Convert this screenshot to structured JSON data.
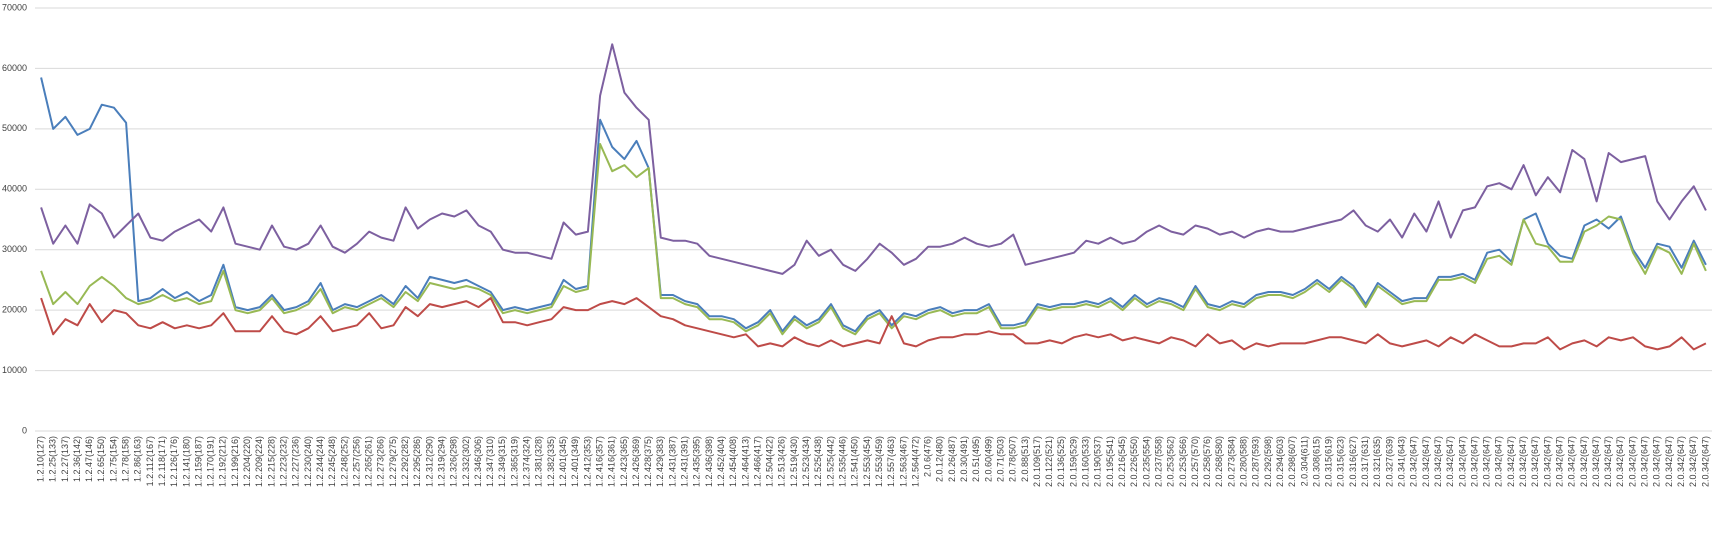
{
  "chart_data": {
    "type": "line",
    "categories": [
      "1.2.10(127)",
      "1.2.25(133)",
      "1.2.27(137)",
      "1.2.36(142)",
      "1.2.47(146)",
      "1.2.65(150)",
      "1.2.75(154)",
      "1.2.78(158)",
      "1.2.86(163)",
      "1.2.112(167)",
      "1.2.118(171)",
      "1.2.126(176)",
      "1.2.141(180)",
      "1.2.159(187)",
      "1.2.170(191)",
      "1.2.192(212)",
      "1.2.199(216)",
      "1.2.204(220)",
      "1.2.209(224)",
      "1.2.215(228)",
      "1.2.223(232)",
      "1.2.227(236)",
      "1.2.230(240)",
      "1.2.244(244)",
      "1.2.245(248)",
      "1.2.248(252)",
      "1.2.257(256)",
      "1.2.265(261)",
      "1.2.273(266)",
      "1.2.279(275)",
      "1.2.292(282)",
      "1.2.295(286)",
      "1.2.312(290)",
      "1.2.319(294)",
      "1.2.326(298)",
      "1.2.332(302)",
      "1.2.346(306)",
      "1.2.347(310)",
      "1.2.349(315)",
      "1.2.365(319)",
      "1.2.374(324)",
      "1.2.381(328)",
      "1.2.382(335)",
      "1.2.401(345)",
      "1.2.401(349)",
      "1.2.412(353)",
      "1.2.416(357)",
      "1.2.416(361)",
      "1.2.423(365)",
      "1.2.426(369)",
      "1.2.428(375)",
      "1.2.429(383)",
      "1.2.431(387)",
      "1.2.431(391)",
      "1.2.435(395)",
      "1.2.436(398)",
      "1.2.452(404)",
      "1.2.454(408)",
      "1.2.464(413)",
      "1.2.466(417)",
      "1.2.504(422)",
      "1.2.513(426)",
      "1.2.519(430)",
      "1.2.523(434)",
      "1.2.525(438)",
      "1.2.525(442)",
      "1.2.535(446)",
      "1.2.541(450)",
      "1.2.553(454)",
      "1.2.553(459)",
      "1.2.557(463)",
      "1.2.563(467)",
      "1.2.564(472)",
      "2.0.6(476)",
      "2.0.12(480)",
      "2.0.26(487)",
      "2.0.30(491)",
      "2.0.51(495)",
      "2.0.60(499)",
      "2.0.71(503)",
      "2.0.78(507)",
      "2.0.88(513)",
      "2.0.109(517)",
      "2.0.122(521)",
      "2.0.136(525)",
      "2.0.159(529)",
      "2.0.160(533)",
      "2.0.190(537)",
      "2.0.195(541)",
      "2.0.216(545)",
      "2.0.226(550)",
      "2.0.235(554)",
      "2.0.237(558)",
      "2.0.253(562)",
      "2.0.253(566)",
      "2.0.257(570)",
      "2.0.258(576)",
      "2.0.268(580)",
      "2.0.273(584)",
      "2.0.280(588)",
      "2.0.287(593)",
      "2.0.292(598)",
      "2.0.294(603)",
      "2.0.298(607)",
      "2.0.304(611)",
      "2.0.308(615)",
      "2.0.315(619)",
      "2.0.315(623)",
      "2.0.316(627)",
      "2.0.317(631)",
      "2.0.321(635)",
      "2.0.327(639)",
      "2.0.341(643)",
      "2.0.342(647)",
      "2.0.342(647)",
      "2.0.342(647)",
      "2.0.342(647)",
      "2.0.342(647)",
      "2.0.342(647)",
      "2.0.342(647)",
      "2.0.342(647)",
      "2.0.342(647)",
      "2.0.342(647)",
      "2.0.342(647)",
      "2.0.342(647)",
      "2.0.342(647)",
      "2.0.342(647)",
      "2.0.342(647)",
      "2.0.342(647)",
      "2.0.342(647)",
      "2.0.342(647)",
      "2.0.342(647)",
      "2.0.342(647)",
      "2.0.342(647)",
      "2.0.342(647)",
      "2.0.342(647)",
      "2.0.342(647)",
      "2.0.342(647)"
    ],
    "series": [
      {
        "color": "#4a7ebb",
        "values": [
          58500,
          50000,
          52000,
          49000,
          50000,
          54000,
          53500,
          51000,
          21500,
          22000,
          23500,
          22000,
          23000,
          21500,
          22500,
          27500,
          20500,
          20000,
          20500,
          22500,
          20000,
          20500,
          21500,
          24500,
          20000,
          21000,
          20500,
          21500,
          22500,
          21000,
          24000,
          22000,
          25500,
          25000,
          24500,
          25000,
          24000,
          23000,
          20000,
          20500,
          20000,
          20500,
          21000,
          25000,
          23500,
          24000,
          51500,
          47000,
          45000,
          48000,
          43500,
          22500,
          22500,
          21500,
          21000,
          19000,
          19000,
          18500,
          17000,
          18000,
          20000,
          16500,
          19000,
          17500,
          18500,
          21000,
          17500,
          16500,
          19000,
          20000,
          17500,
          19500,
          19000,
          20000,
          20500,
          19500,
          20000,
          20000,
          21000,
          17500,
          17500,
          18000,
          21000,
          20500,
          21000,
          21000,
          21500,
          21000,
          22000,
          20500,
          22500,
          21000,
          22000,
          21500,
          20500,
          24000,
          21000,
          20500,
          21500,
          21000,
          22500,
          23000,
          23000,
          22500,
          23500,
          25000,
          23500,
          25500,
          24000,
          21000,
          24500,
          23000,
          21500,
          22000,
          22000,
          25500,
          25500,
          26000,
          25000,
          29500,
          30000,
          28000,
          35000,
          36000,
          31000,
          29000,
          28500,
          34000,
          35000,
          33500,
          35500,
          30000,
          27000,
          31000,
          30500,
          27000,
          31500,
          27500
        ]
      },
      {
        "color": "#98b954",
        "values": [
          26500,
          21000,
          23000,
          21000,
          24000,
          25500,
          24000,
          22000,
          21000,
          21500,
          22500,
          21500,
          22000,
          21000,
          21500,
          26500,
          20000,
          19500,
          20000,
          22000,
          19500,
          20000,
          21000,
          23500,
          19500,
          20500,
          20000,
          21000,
          22000,
          20500,
          23000,
          21500,
          24500,
          24000,
          23500,
          24000,
          23500,
          22500,
          19500,
          20000,
          19500,
          20000,
          20500,
          24000,
          23000,
          23500,
          47500,
          43000,
          44000,
          42000,
          43500,
          22000,
          22000,
          21000,
          20500,
          18500,
          18500,
          18000,
          16500,
          17500,
          19500,
          16000,
          18500,
          17000,
          18000,
          20500,
          17000,
          16000,
          18500,
          19500,
          17000,
          19000,
          18500,
          19500,
          20000,
          19000,
          19500,
          19500,
          20500,
          17000,
          17000,
          17500,
          20500,
          20000,
          20500,
          20500,
          21000,
          20500,
          21500,
          20000,
          22000,
          20500,
          21500,
          21000,
          20000,
          23500,
          20500,
          20000,
          21000,
          20500,
          22000,
          22500,
          22500,
          22000,
          23000,
          24500,
          23000,
          25000,
          23500,
          20500,
          24000,
          22500,
          21000,
          21500,
          21500,
          25000,
          25000,
          25500,
          24500,
          28500,
          29000,
          27500,
          35000,
          31000,
          30500,
          28000,
          28000,
          33000,
          34000,
          35500,
          35000,
          29500,
          26000,
          30500,
          29500,
          26000,
          31000,
          26500
        ]
      },
      {
        "color": "#be4b48",
        "values": [
          22000,
          16000,
          18500,
          17500,
          21000,
          18000,
          20000,
          19500,
          17500,
          17000,
          18000,
          17000,
          17500,
          17000,
          17500,
          19500,
          16500,
          16500,
          16500,
          19000,
          16500,
          16000,
          17000,
          19000,
          16500,
          17000,
          17500,
          19500,
          17000,
          17500,
          20500,
          19000,
          21000,
          20500,
          21000,
          21500,
          20500,
          22000,
          18000,
          18000,
          17500,
          18000,
          18500,
          20500,
          20000,
          20000,
          21000,
          21500,
          21000,
          22000,
          20500,
          19000,
          18500,
          17500,
          17000,
          16500,
          16000,
          15500,
          16000,
          14000,
          14500,
          14000,
          15500,
          14500,
          14000,
          15000,
          14000,
          14500,
          15000,
          14500,
          19000,
          14500,
          14000,
          15000,
          15500,
          15500,
          16000,
          16000,
          16500,
          16000,
          16000,
          14500,
          14500,
          15000,
          14500,
          15500,
          16000,
          15500,
          16000,
          15000,
          15500,
          15000,
          14500,
          15500,
          15000,
          14000,
          16000,
          14500,
          15000,
          13500,
          14500,
          14000,
          14500,
          14500,
          14500,
          15000,
          15500,
          15500,
          15000,
          14500,
          16000,
          14500,
          14000,
          14500,
          15000,
          14000,
          15500,
          14500,
          16000,
          15000,
          14000,
          14000,
          14500,
          14500,
          15500,
          13500,
          14500,
          15000,
          14000,
          15500,
          15000,
          15500,
          14000,
          13500,
          14000,
          15500,
          13500,
          14500
        ]
      },
      {
        "color": "#7d60a0",
        "values": [
          37000,
          31000,
          34000,
          31000,
          37500,
          36000,
          32000,
          34000,
          36000,
          32000,
          31500,
          33000,
          34000,
          35000,
          33000,
          37000,
          31000,
          30500,
          30000,
          34000,
          30500,
          30000,
          31000,
          34000,
          30500,
          29500,
          31000,
          33000,
          32000,
          31500,
          37000,
          33500,
          35000,
          36000,
          35500,
          36500,
          34000,
          33000,
          30000,
          29500,
          29500,
          29000,
          28500,
          34500,
          32500,
          33000,
          55500,
          64000,
          56000,
          53500,
          51500,
          32000,
          31500,
          31500,
          31000,
          29000,
          28500,
          28000,
          27500,
          27000,
          26500,
          26000,
          27500,
          31500,
          29000,
          30000,
          27500,
          26500,
          28500,
          31000,
          29500,
          27500,
          28500,
          30500,
          30500,
          31000,
          32000,
          31000,
          30500,
          31000,
          32500,
          27500,
          28000,
          28500,
          29000,
          29500,
          31500,
          31000,
          32000,
          31000,
          31500,
          33000,
          34000,
          33000,
          32500,
          34000,
          33500,
          32500,
          33000,
          32000,
          33000,
          33500,
          33000,
          33000,
          33500,
          34000,
          34500,
          35000,
          36500,
          34000,
          33000,
          35000,
          32000,
          36000,
          33000,
          38000,
          32000,
          36500,
          37000,
          40500,
          41000,
          40000,
          44000,
          39000,
          42000,
          39500,
          46500,
          45000,
          38000,
          46000,
          44500,
          45000,
          45500,
          38000,
          35000,
          38000,
          40500,
          36500
        ]
      }
    ],
    "ylim": [
      0,
      70000
    ],
    "yticks": [
      0,
      10000,
      20000,
      30000,
      40000,
      50000,
      60000,
      70000
    ],
    "grid": true
  }
}
